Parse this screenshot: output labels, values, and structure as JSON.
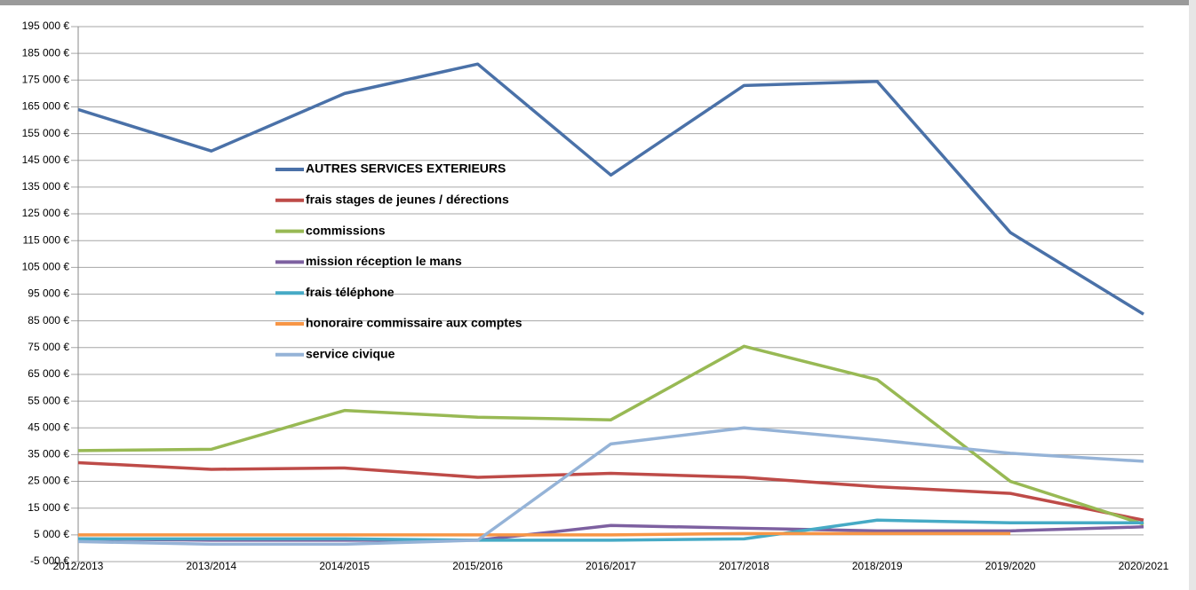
{
  "chart_data": {
    "type": "line",
    "categories": [
      "2012/2013",
      "2013/2014",
      "2014/2015",
      "2015/2016",
      "2016/2017",
      "2017/2018",
      "2018/2019",
      "2019/2020",
      "2020/2021"
    ],
    "series": [
      {
        "name": "AUTRES SERVICES EXTERIEURS",
        "color": "#4a71a8",
        "values": [
          164000,
          148500,
          170000,
          181000,
          139500,
          173000,
          174500,
          118000,
          87500
        ]
      },
      {
        "name": "frais stages de jeunes / dérections",
        "color": "#be4b48",
        "values": [
          32000,
          29500,
          30000,
          26500,
          28000,
          26500,
          23000,
          20500,
          10500
        ]
      },
      {
        "name": "commissions",
        "color": "#98b954",
        "values": [
          36500,
          37000,
          51500,
          49000,
          48000,
          75500,
          63000,
          25000,
          9000
        ]
      },
      {
        "name": "mission réception le mans",
        "color": "#7d60a0",
        "values": [
          3500,
          3000,
          3000,
          3000,
          8500,
          7500,
          6500,
          6500,
          8000
        ]
      },
      {
        "name": "frais téléphone",
        "color": "#46aac5",
        "values": [
          3500,
          3500,
          3500,
          3000,
          3000,
          3500,
          10500,
          9500,
          9500
        ]
      },
      {
        "name": "honoraire commissaire aux comptes",
        "color": "#f79646",
        "values": [
          5000,
          5000,
          5000,
          5000,
          5000,
          5500,
          5500,
          5500,
          null
        ]
      },
      {
        "name": "service civique",
        "color": "#95b3d7",
        "values": [
          2500,
          1500,
          1500,
          3000,
          39000,
          45000,
          40500,
          35500,
          32500
        ]
      }
    ],
    "ylim": [
      -5000,
      195000
    ],
    "yticks": [
      {
        "value": -5000,
        "label": "-5 000 €"
      },
      {
        "value": 5000,
        "label": "5 000 €"
      },
      {
        "value": 15000,
        "label": "15 000 €"
      },
      {
        "value": 25000,
        "label": "25 000 €"
      },
      {
        "value": 35000,
        "label": "35 000 €"
      },
      {
        "value": 45000,
        "label": "45 000 €"
      },
      {
        "value": 55000,
        "label": "55 000 €"
      },
      {
        "value": 65000,
        "label": "65 000 €"
      },
      {
        "value": 75000,
        "label": "75 000 €"
      },
      {
        "value": 85000,
        "label": "85 000 €"
      },
      {
        "value": 95000,
        "label": "95 000 €"
      },
      {
        "value": 105000,
        "label": "105 000 €"
      },
      {
        "value": 115000,
        "label": "115 000 €"
      },
      {
        "value": 125000,
        "label": "125 000 €"
      },
      {
        "value": 135000,
        "label": "135 000 €"
      },
      {
        "value": 145000,
        "label": "145 000 €"
      },
      {
        "value": 155000,
        "label": "155 000 €"
      },
      {
        "value": 165000,
        "label": "165 000 €"
      },
      {
        "value": 175000,
        "label": "175 000 €"
      },
      {
        "value": 185000,
        "label": "185 000 €"
      },
      {
        "value": 195000,
        "label": "195 000 €"
      }
    ],
    "grid": true,
    "legend": "inside"
  }
}
